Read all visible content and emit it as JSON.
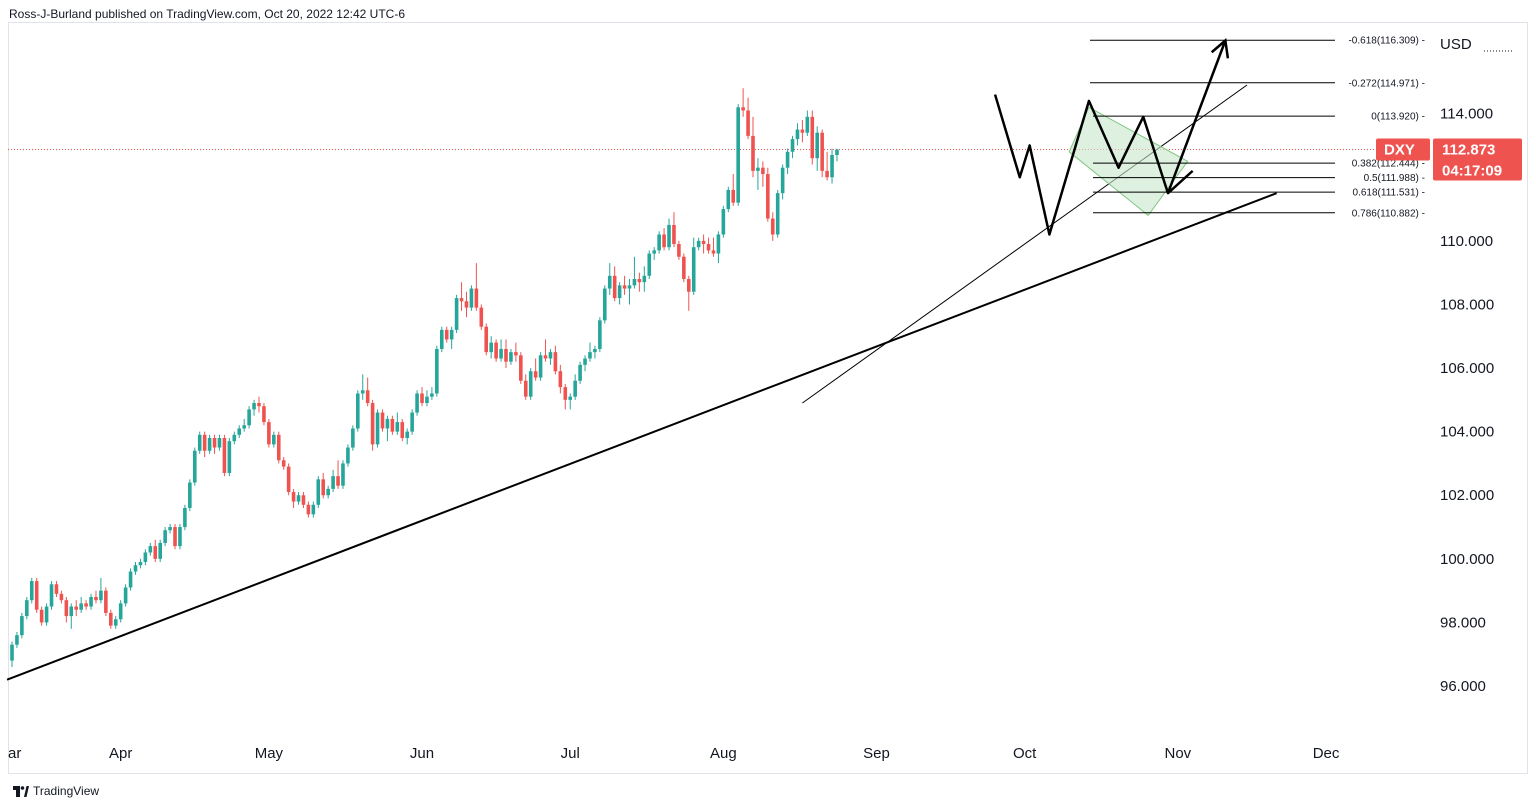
{
  "header": {
    "publisher": "Ross-J-Burland published on TradingView.com, Oct 20, 2022 12:42 UTC-6"
  },
  "footer": {
    "brand": "TradingView"
  },
  "colors": {
    "up": "#26a69a",
    "down": "#ef5350",
    "line": "#000000",
    "price_line": "#ef5350",
    "triangle_fill": "#c8e6c9",
    "triangle_stroke": "#81c784"
  },
  "chart_data": {
    "type": "candlestick",
    "symbol": "DXY",
    "currency": "USD",
    "last_price": "112.873",
    "countdown": "04:17:09",
    "ylim": [
      94.0,
      117.0
    ],
    "y_ticks": [
      "96.000",
      "98.000",
      "100.000",
      "102.000",
      "104.000",
      "106.000",
      "108.000",
      "110.000",
      "114.000"
    ],
    "x_labels": [
      {
        "label": "ar",
        "day": 0
      },
      {
        "label": "Apr",
        "day": 22
      },
      {
        "label": "May",
        "day": 52
      },
      {
        "label": "Jun",
        "day": 83
      },
      {
        "label": "Jul",
        "day": 113
      },
      {
        "label": "Aug",
        "day": 144
      },
      {
        "label": "Sep",
        "day": 175
      },
      {
        "label": "Oct",
        "day": 205
      },
      {
        "label": "Nov",
        "day": 236
      },
      {
        "label": "Dec",
        "day": 266
      }
    ],
    "fib_levels": [
      {
        "label": "-0.618(116.309)",
        "value": 116.309
      },
      {
        "label": "-0.272(114.971)",
        "value": 114.971
      },
      {
        "label": "0(113.920)",
        "value": 113.92
      },
      {
        "label": "0.382(112.444)",
        "value": 112.444
      },
      {
        "label": "0.5(111.988)",
        "value": 111.988
      },
      {
        "label": "0.618(111.531)",
        "value": 111.531
      },
      {
        "label": "0.786(110.882)",
        "value": 110.882
      }
    ],
    "trendlines": [
      {
        "name": "main-trendline",
        "from": {
          "day": -1,
          "price": 96.2
        },
        "to": {
          "day": 256,
          "price": 111.5
        }
      },
      {
        "name": "inner-trendline",
        "from": {
          "day": 160,
          "price": 104.9
        },
        "to": {
          "day": 250,
          "price": 114.9
        }
      }
    ],
    "pattern_path": [
      {
        "day": 199,
        "price": 114.6
      },
      {
        "day": 204,
        "price": 112.0
      },
      {
        "day": 206,
        "price": 113.0
      },
      {
        "day": 210,
        "price": 110.2
      },
      {
        "day": 218,
        "price": 114.4
      },
      {
        "day": 224,
        "price": 112.3
      },
      {
        "day": 229,
        "price": 113.9
      },
      {
        "day": 234,
        "price": 111.5
      },
      {
        "day": 239,
        "price": 112.2
      }
    ],
    "projection_arrow": {
      "from": {
        "day": 234,
        "price": 111.5
      },
      "to": {
        "day": 244,
        "price": 116.3
      }
    },
    "triangle": [
      {
        "day": 218,
        "price": 114.2
      },
      {
        "day": 238,
        "price": 112.5
      },
      {
        "day": 230,
        "price": 110.8
      },
      {
        "day": 214,
        "price": 112.8
      }
    ],
    "candles": [
      {
        "o": 96.8,
        "h": 97.4,
        "l": 96.6,
        "c": 97.3
      },
      {
        "o": 97.3,
        "h": 97.7,
        "l": 97.2,
        "c": 97.6
      },
      {
        "o": 97.6,
        "h": 98.3,
        "l": 97.5,
        "c": 98.2
      },
      {
        "o": 98.2,
        "h": 98.8,
        "l": 98.1,
        "c": 98.7
      },
      {
        "o": 98.7,
        "h": 99.4,
        "l": 98.6,
        "c": 99.3
      },
      {
        "o": 99.3,
        "h": 99.4,
        "l": 98.3,
        "c": 98.4
      },
      {
        "o": 98.4,
        "h": 98.5,
        "l": 97.9,
        "c": 98.0
      },
      {
        "o": 98.0,
        "h": 98.6,
        "l": 97.9,
        "c": 98.5
      },
      {
        "o": 98.5,
        "h": 99.3,
        "l": 98.4,
        "c": 99.2
      },
      {
        "o": 99.2,
        "h": 99.3,
        "l": 98.8,
        "c": 98.9
      },
      {
        "o": 98.9,
        "h": 99.0,
        "l": 98.6,
        "c": 98.7
      },
      {
        "o": 98.7,
        "h": 98.8,
        "l": 98.0,
        "c": 98.2
      },
      {
        "o": 98.2,
        "h": 98.6,
        "l": 97.8,
        "c": 98.5
      },
      {
        "o": 98.5,
        "h": 98.7,
        "l": 98.2,
        "c": 98.4
      },
      {
        "o": 98.4,
        "h": 98.8,
        "l": 98.3,
        "c": 98.6
      },
      {
        "o": 98.6,
        "h": 98.7,
        "l": 98.4,
        "c": 98.5
      },
      {
        "o": 98.5,
        "h": 98.9,
        "l": 98.4,
        "c": 98.8
      },
      {
        "o": 98.8,
        "h": 99.0,
        "l": 98.6,
        "c": 98.7
      },
      {
        "o": 98.7,
        "h": 99.4,
        "l": 98.6,
        "c": 99.0
      },
      {
        "o": 99.0,
        "h": 99.1,
        "l": 98.2,
        "c": 98.3
      },
      {
        "o": 98.3,
        "h": 98.4,
        "l": 97.8,
        "c": 97.9
      },
      {
        "o": 97.9,
        "h": 98.2,
        "l": 97.8,
        "c": 98.1
      },
      {
        "o": 98.1,
        "h": 98.7,
        "l": 98.0,
        "c": 98.6
      },
      {
        "o": 98.6,
        "h": 99.2,
        "l": 98.5,
        "c": 99.1
      },
      {
        "o": 99.1,
        "h": 99.7,
        "l": 99.0,
        "c": 99.6
      },
      {
        "o": 99.6,
        "h": 99.9,
        "l": 99.5,
        "c": 99.8
      },
      {
        "o": 99.8,
        "h": 100.0,
        "l": 99.7,
        "c": 99.9
      },
      {
        "o": 99.9,
        "h": 100.3,
        "l": 99.8,
        "c": 100.2
      },
      {
        "o": 100.2,
        "h": 100.5,
        "l": 100.1,
        "c": 100.4
      },
      {
        "o": 100.4,
        "h": 100.6,
        "l": 99.9,
        "c": 100.0
      },
      {
        "o": 100.0,
        "h": 100.6,
        "l": 99.9,
        "c": 100.5
      },
      {
        "o": 100.5,
        "h": 101.0,
        "l": 100.4,
        "c": 100.9
      },
      {
        "o": 100.9,
        "h": 101.1,
        "l": 100.8,
        "c": 101.0
      },
      {
        "o": 101.0,
        "h": 101.1,
        "l": 100.3,
        "c": 100.4
      },
      {
        "o": 100.4,
        "h": 101.1,
        "l": 100.3,
        "c": 101.0
      },
      {
        "o": 101.0,
        "h": 101.7,
        "l": 100.9,
        "c": 101.6
      },
      {
        "o": 101.6,
        "h": 102.5,
        "l": 101.5,
        "c": 102.4
      },
      {
        "o": 102.4,
        "h": 103.5,
        "l": 102.3,
        "c": 103.4
      },
      {
        "o": 103.4,
        "h": 104.0,
        "l": 103.3,
        "c": 103.9
      },
      {
        "o": 103.9,
        "h": 104.0,
        "l": 103.2,
        "c": 103.4
      },
      {
        "o": 103.4,
        "h": 103.9,
        "l": 103.3,
        "c": 103.8
      },
      {
        "o": 103.8,
        "h": 103.9,
        "l": 103.3,
        "c": 103.5
      },
      {
        "o": 103.5,
        "h": 103.9,
        "l": 103.4,
        "c": 103.8
      },
      {
        "o": 103.8,
        "h": 103.9,
        "l": 102.6,
        "c": 102.7
      },
      {
        "o": 102.7,
        "h": 103.8,
        "l": 102.6,
        "c": 103.7
      },
      {
        "o": 103.7,
        "h": 104.0,
        "l": 103.6,
        "c": 103.9
      },
      {
        "o": 103.9,
        "h": 104.2,
        "l": 103.8,
        "c": 104.1
      },
      {
        "o": 104.1,
        "h": 104.4,
        "l": 104.0,
        "c": 104.2
      },
      {
        "o": 104.2,
        "h": 104.8,
        "l": 104.1,
        "c": 104.7
      },
      {
        "o": 104.7,
        "h": 105.0,
        "l": 104.5,
        "c": 104.9
      },
      {
        "o": 104.9,
        "h": 105.1,
        "l": 104.6,
        "c": 104.8
      },
      {
        "o": 104.8,
        "h": 104.9,
        "l": 104.2,
        "c": 104.3
      },
      {
        "o": 104.3,
        "h": 104.4,
        "l": 103.5,
        "c": 103.6
      },
      {
        "o": 103.6,
        "h": 104.0,
        "l": 103.5,
        "c": 103.9
      },
      {
        "o": 103.9,
        "h": 104.0,
        "l": 103.0,
        "c": 103.1
      },
      {
        "o": 103.1,
        "h": 103.2,
        "l": 102.8,
        "c": 102.9
      },
      {
        "o": 102.9,
        "h": 103.0,
        "l": 102.0,
        "c": 102.1
      },
      {
        "o": 102.1,
        "h": 102.2,
        "l": 101.6,
        "c": 101.8
      },
      {
        "o": 101.8,
        "h": 102.1,
        "l": 101.7,
        "c": 102.0
      },
      {
        "o": 102.0,
        "h": 102.1,
        "l": 101.6,
        "c": 101.7
      },
      {
        "o": 101.7,
        "h": 101.8,
        "l": 101.3,
        "c": 101.4
      },
      {
        "o": 101.4,
        "h": 101.8,
        "l": 101.3,
        "c": 101.7
      },
      {
        "o": 101.7,
        "h": 102.6,
        "l": 101.6,
        "c": 102.5
      },
      {
        "o": 102.5,
        "h": 102.7,
        "l": 101.9,
        "c": 102.0
      },
      {
        "o": 102.0,
        "h": 102.3,
        "l": 101.9,
        "c": 102.2
      },
      {
        "o": 102.2,
        "h": 102.8,
        "l": 102.1,
        "c": 102.6
      },
      {
        "o": 102.6,
        "h": 103.1,
        "l": 102.2,
        "c": 102.3
      },
      {
        "o": 102.3,
        "h": 103.1,
        "l": 102.2,
        "c": 103.0
      },
      {
        "o": 103.0,
        "h": 103.6,
        "l": 102.9,
        "c": 103.5
      },
      {
        "o": 103.5,
        "h": 104.2,
        "l": 103.4,
        "c": 104.1
      },
      {
        "o": 104.1,
        "h": 105.3,
        "l": 104.0,
        "c": 105.2
      },
      {
        "o": 105.2,
        "h": 105.8,
        "l": 105.0,
        "c": 105.3
      },
      {
        "o": 105.3,
        "h": 105.7,
        "l": 104.8,
        "c": 104.9
      },
      {
        "o": 104.9,
        "h": 105.0,
        "l": 103.4,
        "c": 103.6
      },
      {
        "o": 103.6,
        "h": 104.7,
        "l": 103.5,
        "c": 104.6
      },
      {
        "o": 104.6,
        "h": 104.7,
        "l": 104.0,
        "c": 104.1
      },
      {
        "o": 104.1,
        "h": 104.5,
        "l": 103.7,
        "c": 104.4
      },
      {
        "o": 104.4,
        "h": 104.5,
        "l": 103.9,
        "c": 104.0
      },
      {
        "o": 104.0,
        "h": 104.6,
        "l": 103.9,
        "c": 104.3
      },
      {
        "o": 104.3,
        "h": 104.4,
        "l": 103.7,
        "c": 103.8
      },
      {
        "o": 103.8,
        "h": 104.1,
        "l": 103.6,
        "c": 104.0
      },
      {
        "o": 104.0,
        "h": 104.7,
        "l": 103.9,
        "c": 104.6
      },
      {
        "o": 104.6,
        "h": 105.3,
        "l": 104.5,
        "c": 105.2
      },
      {
        "o": 105.2,
        "h": 105.4,
        "l": 104.8,
        "c": 104.9
      },
      {
        "o": 104.9,
        "h": 105.3,
        "l": 104.8,
        "c": 105.1
      },
      {
        "o": 105.1,
        "h": 105.4,
        "l": 105.0,
        "c": 105.2
      },
      {
        "o": 105.2,
        "h": 106.7,
        "l": 105.1,
        "c": 106.6
      },
      {
        "o": 106.6,
        "h": 107.3,
        "l": 106.5,
        "c": 107.2
      },
      {
        "o": 107.2,
        "h": 107.3,
        "l": 106.8,
        "c": 106.9
      },
      {
        "o": 106.9,
        "h": 107.3,
        "l": 106.6,
        "c": 107.2
      },
      {
        "o": 107.2,
        "h": 108.3,
        "l": 107.1,
        "c": 108.2
      },
      {
        "o": 108.2,
        "h": 108.7,
        "l": 107.8,
        "c": 108.1
      },
      {
        "o": 108.1,
        "h": 108.4,
        "l": 107.6,
        "c": 107.9
      },
      {
        "o": 107.9,
        "h": 108.6,
        "l": 107.8,
        "c": 108.5
      },
      {
        "o": 108.5,
        "h": 109.3,
        "l": 107.8,
        "c": 107.9
      },
      {
        "o": 107.9,
        "h": 108.0,
        "l": 107.2,
        "c": 107.3
      },
      {
        "o": 107.3,
        "h": 107.4,
        "l": 106.4,
        "c": 106.5
      },
      {
        "o": 106.5,
        "h": 107.0,
        "l": 106.3,
        "c": 106.8
      },
      {
        "o": 106.8,
        "h": 106.9,
        "l": 106.2,
        "c": 106.3
      },
      {
        "o": 106.3,
        "h": 106.9,
        "l": 106.2,
        "c": 106.6
      },
      {
        "o": 106.6,
        "h": 106.9,
        "l": 106.0,
        "c": 106.2
      },
      {
        "o": 106.2,
        "h": 106.6,
        "l": 106.1,
        "c": 106.5
      },
      {
        "o": 106.5,
        "h": 106.8,
        "l": 106.2,
        "c": 106.4
      },
      {
        "o": 106.4,
        "h": 106.5,
        "l": 105.5,
        "c": 105.6
      },
      {
        "o": 105.6,
        "h": 105.8,
        "l": 105.0,
        "c": 105.1
      },
      {
        "o": 105.1,
        "h": 106.0,
        "l": 105.0,
        "c": 105.9
      },
      {
        "o": 105.9,
        "h": 106.3,
        "l": 105.6,
        "c": 105.7
      },
      {
        "o": 105.7,
        "h": 106.5,
        "l": 105.6,
        "c": 106.4
      },
      {
        "o": 106.4,
        "h": 106.9,
        "l": 106.2,
        "c": 106.3
      },
      {
        "o": 106.3,
        "h": 106.6,
        "l": 106.1,
        "c": 106.5
      },
      {
        "o": 106.5,
        "h": 106.7,
        "l": 105.8,
        "c": 105.9
      },
      {
        "o": 105.9,
        "h": 106.1,
        "l": 105.2,
        "c": 105.4
      },
      {
        "o": 105.4,
        "h": 105.5,
        "l": 104.7,
        "c": 105.0
      },
      {
        "o": 105.0,
        "h": 105.2,
        "l": 104.7,
        "c": 105.1
      },
      {
        "o": 105.1,
        "h": 105.8,
        "l": 105.0,
        "c": 105.6
      },
      {
        "o": 105.6,
        "h": 106.2,
        "l": 105.5,
        "c": 106.1
      },
      {
        "o": 106.1,
        "h": 106.4,
        "l": 105.9,
        "c": 106.3
      },
      {
        "o": 106.3,
        "h": 106.8,
        "l": 106.2,
        "c": 106.5
      },
      {
        "o": 106.5,
        "h": 106.7,
        "l": 106.3,
        "c": 106.6
      },
      {
        "o": 106.6,
        "h": 107.6,
        "l": 106.5,
        "c": 107.5
      },
      {
        "o": 107.5,
        "h": 108.6,
        "l": 107.4,
        "c": 108.5
      },
      {
        "o": 108.5,
        "h": 109.3,
        "l": 108.3,
        "c": 108.9
      },
      {
        "o": 108.9,
        "h": 109.2,
        "l": 108.1,
        "c": 108.2
      },
      {
        "o": 108.2,
        "h": 108.7,
        "l": 108.0,
        "c": 108.6
      },
      {
        "o": 108.6,
        "h": 108.9,
        "l": 108.3,
        "c": 108.5
      },
      {
        "o": 108.5,
        "h": 108.8,
        "l": 108.0,
        "c": 108.6
      },
      {
        "o": 108.6,
        "h": 109.5,
        "l": 108.5,
        "c": 108.8
      },
      {
        "o": 108.8,
        "h": 109.0,
        "l": 108.4,
        "c": 108.7
      },
      {
        "o": 108.7,
        "h": 109.2,
        "l": 108.4,
        "c": 108.9
      },
      {
        "o": 108.9,
        "h": 109.7,
        "l": 108.8,
        "c": 109.6
      },
      {
        "o": 109.6,
        "h": 109.8,
        "l": 109.4,
        "c": 109.7
      },
      {
        "o": 109.7,
        "h": 110.3,
        "l": 109.6,
        "c": 110.2
      },
      {
        "o": 110.2,
        "h": 110.4,
        "l": 109.7,
        "c": 109.8
      },
      {
        "o": 109.8,
        "h": 110.7,
        "l": 109.7,
        "c": 110.5
      },
      {
        "o": 110.5,
        "h": 110.9,
        "l": 109.8,
        "c": 109.9
      },
      {
        "o": 109.9,
        "h": 110.0,
        "l": 109.4,
        "c": 109.5
      },
      {
        "o": 109.5,
        "h": 109.6,
        "l": 108.7,
        "c": 108.8
      },
      {
        "o": 108.8,
        "h": 108.9,
        "l": 107.8,
        "c": 108.4
      },
      {
        "o": 108.4,
        "h": 110.1,
        "l": 108.3,
        "c": 109.8
      },
      {
        "o": 109.8,
        "h": 110.1,
        "l": 109.7,
        "c": 110.0
      },
      {
        "o": 110.0,
        "h": 110.2,
        "l": 109.6,
        "c": 109.9
      },
      {
        "o": 109.9,
        "h": 110.1,
        "l": 109.6,
        "c": 109.7
      },
      {
        "o": 109.7,
        "h": 110.1,
        "l": 109.5,
        "c": 109.6
      },
      {
        "o": 109.6,
        "h": 110.3,
        "l": 109.3,
        "c": 110.2
      },
      {
        "o": 110.2,
        "h": 111.1,
        "l": 110.1,
        "c": 111.0
      },
      {
        "o": 111.0,
        "h": 111.7,
        "l": 110.9,
        "c": 111.6
      },
      {
        "o": 111.6,
        "h": 112.1,
        "l": 111.1,
        "c": 111.2
      },
      {
        "o": 111.2,
        "h": 114.3,
        "l": 111.1,
        "c": 114.2
      },
      {
        "o": 114.2,
        "h": 114.8,
        "l": 113.9,
        "c": 114.1
      },
      {
        "o": 114.1,
        "h": 114.5,
        "l": 113.2,
        "c": 113.3
      },
      {
        "o": 113.3,
        "h": 113.9,
        "l": 112.0,
        "c": 112.2
      },
      {
        "o": 112.2,
        "h": 112.6,
        "l": 111.6,
        "c": 112.3
      },
      {
        "o": 112.3,
        "h": 112.5,
        "l": 111.7,
        "c": 112.1
      },
      {
        "o": 112.1,
        "h": 112.3,
        "l": 110.6,
        "c": 110.7
      },
      {
        "o": 110.7,
        "h": 110.9,
        "l": 110.0,
        "c": 110.2
      },
      {
        "o": 110.2,
        "h": 111.6,
        "l": 110.1,
        "c": 111.5
      },
      {
        "o": 111.5,
        "h": 112.4,
        "l": 111.3,
        "c": 112.3
      },
      {
        "o": 112.3,
        "h": 112.9,
        "l": 112.1,
        "c": 112.8
      },
      {
        "o": 112.8,
        "h": 113.3,
        "l": 112.6,
        "c": 113.2
      },
      {
        "o": 113.2,
        "h": 113.7,
        "l": 113.0,
        "c": 113.5
      },
      {
        "o": 113.5,
        "h": 113.8,
        "l": 113.1,
        "c": 113.4
      },
      {
        "o": 113.4,
        "h": 114.1,
        "l": 113.3,
        "c": 113.9
      },
      {
        "o": 113.9,
        "h": 114.1,
        "l": 112.4,
        "c": 112.6
      },
      {
        "o": 112.6,
        "h": 113.6,
        "l": 112.2,
        "c": 113.4
      },
      {
        "o": 113.4,
        "h": 113.5,
        "l": 112.0,
        "c": 112.2
      },
      {
        "o": 112.2,
        "h": 112.8,
        "l": 111.9,
        "c": 112.0
      },
      {
        "o": 112.0,
        "h": 112.9,
        "l": 111.8,
        "c": 112.7
      },
      {
        "o": 112.7,
        "h": 112.9,
        "l": 112.5,
        "c": 112.87
      }
    ]
  }
}
